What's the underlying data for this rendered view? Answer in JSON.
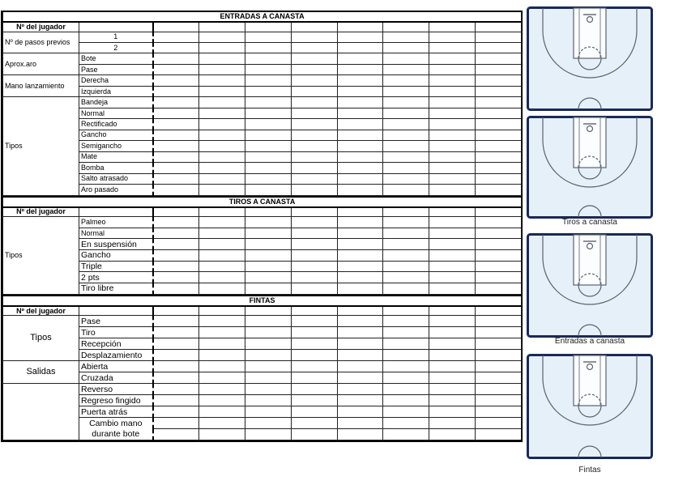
{
  "sections": [
    {
      "title": "ENTRADAS A CANASTA",
      "header": "Nº del jugador",
      "row_height": 14.47,
      "groups": [
        {
          "label": "Nº de pasos previos",
          "rows": [
            {
              "label": "1",
              "num": true
            },
            {
              "label": "2",
              "num": true
            }
          ]
        },
        {
          "label": "Aprox.aro",
          "rows": [
            {
              "label": "Bote"
            },
            {
              "label": "Pase"
            }
          ]
        },
        {
          "label": "Mano lanzamiento",
          "rows": [
            {
              "label": "Derecha"
            },
            {
              "label": "Izquierda"
            }
          ]
        },
        {
          "label": "Tipos",
          "rows": [
            {
              "label": "Bandeja"
            },
            {
              "label": "Normal"
            },
            {
              "label": "Rectificado"
            },
            {
              "label": "Gancho"
            },
            {
              "label": "Semigancho"
            },
            {
              "label": "Mate"
            },
            {
              "label": "Bomba"
            },
            {
              "label": "Salto atrasado"
            },
            {
              "label": "Aro pasado"
            }
          ]
        }
      ]
    },
    {
      "title": "TIROS A CANASTA",
      "header": "Nº del jugador",
      "row_height": 14.7,
      "groups": [
        {
          "label": "Tipos",
          "rows": [
            {
              "label": "Palmeo"
            },
            {
              "label": "Normal"
            },
            {
              "label": "En suspensión",
              "big": true
            },
            {
              "label": "Gancho",
              "big": true
            },
            {
              "label": "Triple",
              "big": true
            },
            {
              "label": "2 pts",
              "big": true
            },
            {
              "label": "Tiro libre",
              "big": true
            }
          ]
        }
      ]
    },
    {
      "title": "FINTAS",
      "header": "Nº del jugador",
      "row_height": 15,
      "groups": [
        {
          "label": "Tipos",
          "center": true,
          "rows": [
            {
              "label": "Pase",
              "big": true
            },
            {
              "label": "Tiro",
              "big": true
            },
            {
              "label": "Recepción",
              "big": true
            },
            {
              "label": "Desplazamiento",
              "big": true
            }
          ]
        },
        {
          "label": "Salidas",
          "center": true,
          "rows": [
            {
              "label": "Abierta",
              "big": true
            },
            {
              "label": "Cruzada",
              "big": true
            }
          ]
        },
        {
          "label": "",
          "center": true,
          "rows": [
            {
              "label": "Reverso",
              "big": true
            },
            {
              "label": "Regreso fingido",
              "big": true
            },
            {
              "label": "Puerta atrás",
              "big": true
            },
            {
              "label": "Cambio mano durante bote",
              "wrap": true,
              "span": 2
            }
          ]
        }
      ]
    }
  ],
  "data_columns": 8,
  "courts": [
    {
      "caption": ""
    },
    {
      "caption": "Tiros a canasta"
    },
    {
      "caption": "Entradas a canasta"
    },
    {
      "caption": "Fintas"
    }
  ],
  "colors": {
    "court_fill": "#e6f0f9",
    "court_border": "#1a2a55",
    "court_lines": "#5a6270"
  }
}
